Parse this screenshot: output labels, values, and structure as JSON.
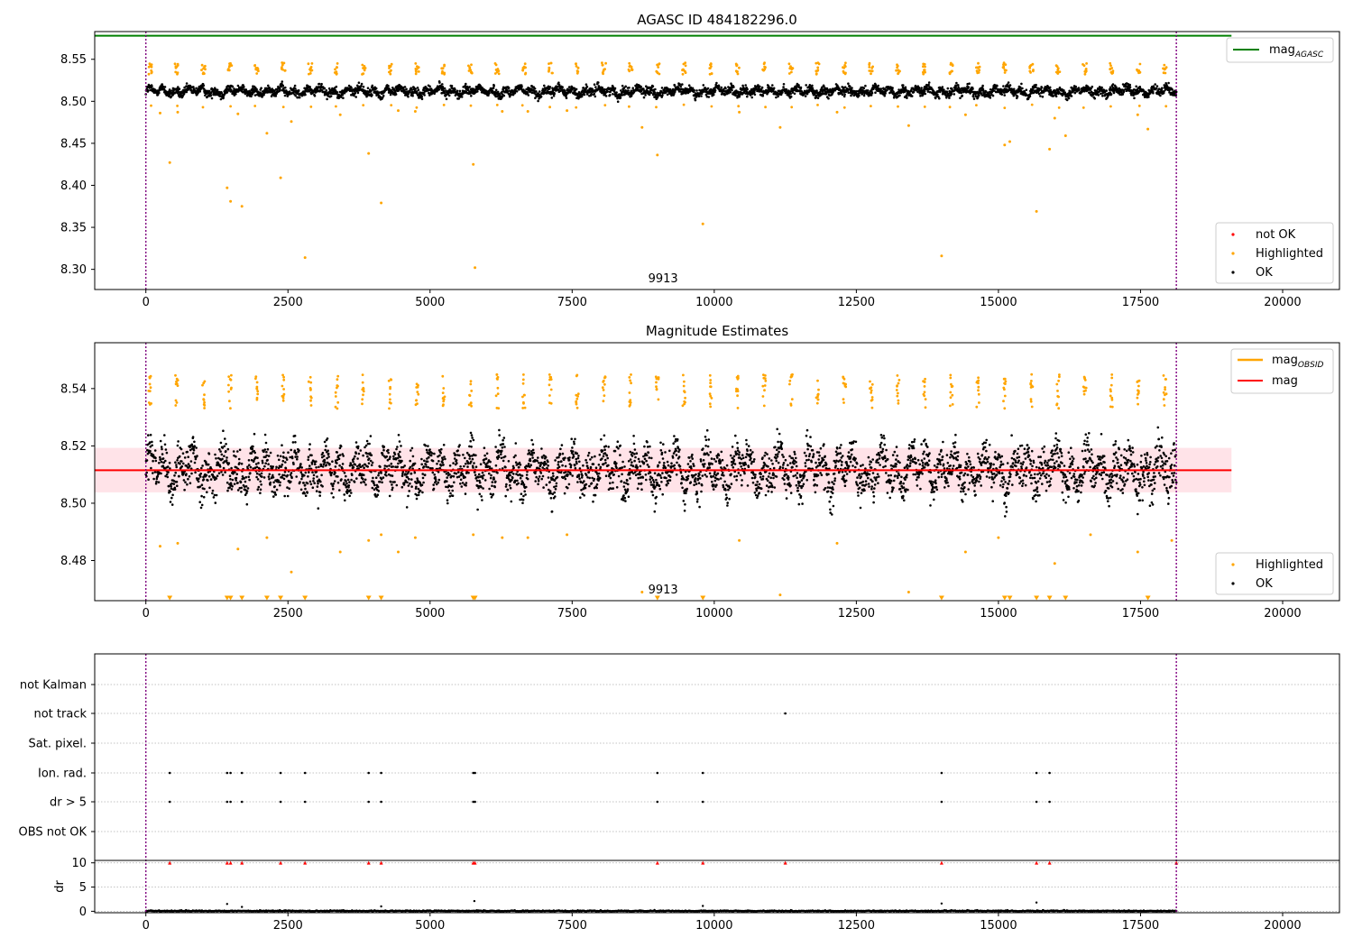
{
  "colors": {
    "ok": "#000000",
    "highlighted": "#ffa500",
    "not_ok": "#ff0000",
    "mag_agasc": "#008000",
    "mag_obsid": "#ffa500",
    "mag_mean": "#ff0000",
    "band": "#ffc0cb",
    "obs_boundary": "#800080"
  },
  "chart_data": [
    {
      "type": "scatter",
      "title": "AGASC ID 484182296.0",
      "xlim": [
        -900,
        21000
      ],
      "ylim": [
        8.276,
        8.583
      ],
      "xticks": [
        0,
        2500,
        5000,
        7500,
        10000,
        12500,
        15000,
        17500,
        20000
      ],
      "yticks": [
        8.3,
        8.35,
        8.4,
        8.45,
        8.5,
        8.55
      ],
      "mag_agasc": 8.578,
      "obs_boundaries": [
        0,
        18130
      ],
      "obsid_label": {
        "text": "9913",
        "x": 9100
      },
      "band_legend": [
        {
          "label": "mag",
          "sub": "AGASC",
          "color_key": "mag_agasc"
        }
      ],
      "scatter_legend": [
        {
          "label": "not OK",
          "color_key": "not_ok"
        },
        {
          "label": "Highlighted",
          "color_key": "highlighted"
        },
        {
          "label": "OK",
          "color_key": "ok"
        }
      ],
      "sampled_series": {
        "start": 0,
        "end": 18130,
        "count": 3600,
        "center": 8.512,
        "spread": 0.007,
        "cluster_period": 470,
        "cluster_value": 8.536
      },
      "highlighted_outliers": [
        [
          420,
          8.427
        ],
        [
          1430,
          8.397
        ],
        [
          1490,
          8.381
        ],
        [
          1690,
          8.375
        ],
        [
          2130,
          8.462
        ],
        [
          2370,
          8.409
        ],
        [
          2800,
          8.314
        ],
        [
          3920,
          8.438
        ],
        [
          4140,
          8.379
        ],
        [
          5760,
          8.425
        ],
        [
          5790,
          8.302
        ],
        [
          8730,
          8.469
        ],
        [
          9000,
          8.436
        ],
        [
          9800,
          8.354
        ],
        [
          11160,
          8.469
        ],
        [
          13420,
          8.471
        ],
        [
          14000,
          8.316
        ],
        [
          15110,
          8.448
        ],
        [
          15200,
          8.452
        ],
        [
          15670,
          8.369
        ],
        [
          15900,
          8.443
        ],
        [
          16180,
          8.459
        ],
        [
          17630,
          8.467
        ],
        [
          250,
          8.486
        ],
        [
          560,
          8.487
        ],
        [
          1620,
          8.485
        ],
        [
          2560,
          8.476
        ],
        [
          3420,
          8.484
        ],
        [
          4440,
          8.489
        ],
        [
          4740,
          8.488
        ],
        [
          6270,
          8.488
        ],
        [
          6720,
          8.488
        ],
        [
          7410,
          8.489
        ],
        [
          10440,
          8.487
        ],
        [
          12160,
          8.487
        ],
        [
          14420,
          8.484
        ],
        [
          15990,
          8.48
        ],
        [
          17450,
          8.484
        ]
      ]
    },
    {
      "type": "scatter",
      "title": "Magnitude Estimates",
      "xlim": [
        -900,
        21000
      ],
      "ylim": [
        8.466,
        8.556
      ],
      "xticks": [
        0,
        2500,
        5000,
        7500,
        10000,
        12500,
        15000,
        17500,
        20000
      ],
      "yticks": [
        8.48,
        8.5,
        8.52,
        8.54
      ],
      "mag_mean": 8.5115,
      "mag_band": [
        8.5038,
        8.5193
      ],
      "mag_line_xrange": [
        -900,
        19100
      ],
      "obs_boundaries": [
        0,
        18130
      ],
      "obsid_label": {
        "text": "9913",
        "x": 9100
      },
      "line_legend": [
        {
          "label": "mag",
          "sub": "OBSID",
          "color_key": "mag_obsid"
        },
        {
          "label": "mag",
          "sub": "",
          "color_key": "mag_mean"
        }
      ],
      "scatter_legend": [
        {
          "label": "Highlighted",
          "color_key": "highlighted"
        },
        {
          "label": "OK",
          "color_key": "ok"
        }
      ],
      "sampled_series": {
        "start": 0,
        "end": 18130,
        "count": 3600,
        "center": 8.5115,
        "spread": 0.0075,
        "cluster_period": 470,
        "cluster_value": 8.537
      },
      "below_range_markers": [
        420,
        1430,
        1490,
        1690,
        2130,
        2370,
        2800,
        3920,
        4140,
        5760,
        5790,
        9000,
        9800,
        14000,
        15110,
        15200,
        15670,
        15900,
        16180,
        17630
      ],
      "highlighted_points": [
        [
          250,
          8.485
        ],
        [
          560,
          8.486
        ],
        [
          1620,
          8.484
        ],
        [
          2130,
          8.488
        ],
        [
          2560,
          8.476
        ],
        [
          3420,
          8.483
        ],
        [
          3920,
          8.487
        ],
        [
          4140,
          8.489
        ],
        [
          4440,
          8.483
        ],
        [
          4740,
          8.488
        ],
        [
          5760,
          8.489
        ],
        [
          6270,
          8.488
        ],
        [
          6720,
          8.488
        ],
        [
          7410,
          8.489
        ],
        [
          8730,
          8.469
        ],
        [
          10440,
          8.487
        ],
        [
          11160,
          8.468
        ],
        [
          12160,
          8.486
        ],
        [
          13420,
          8.469
        ],
        [
          14420,
          8.483
        ],
        [
          15000,
          8.488
        ],
        [
          15990,
          8.479
        ],
        [
          16620,
          8.489
        ],
        [
          17450,
          8.483
        ],
        [
          18050,
          8.487
        ]
      ]
    },
    {
      "type": "scatter",
      "title": "",
      "xlim": [
        -900,
        21000
      ],
      "xticks": [
        0,
        2500,
        5000,
        7500,
        10000,
        12500,
        15000,
        17500,
        20000
      ],
      "flag_rows": [
        "not Kalman",
        "not track",
        "Sat. pixel.",
        "Ion. rad.",
        "dr > 5",
        "OBS not OK"
      ],
      "flag_points": {
        "not Kalman": [],
        "not track": [
          11250
        ],
        "Sat. pixel.": [],
        "Ion. rad.": [
          420,
          1430,
          1490,
          1690,
          2370,
          2800,
          3920,
          4140,
          5760,
          5790,
          9000,
          9800,
          14000,
          15670,
          15900
        ],
        "dr > 5": [
          420,
          1430,
          1490,
          1690,
          2370,
          2800,
          3920,
          4140,
          5760,
          5790,
          9000,
          9800,
          14000,
          15670,
          15900
        ],
        "OBS not OK": []
      },
      "dr_ylabel": "dr",
      "dr_ylim": [
        -0.3,
        10.5
      ],
      "dr_yticks": [
        0,
        5,
        10
      ],
      "dr_clipped_markers": [
        420,
        1430,
        1490,
        1690,
        2370,
        2800,
        3920,
        4140,
        5760,
        5790,
        9000,
        9800,
        11250,
        14000,
        15670,
        15900,
        18130
      ],
      "obs_boundaries": [
        0,
        18130
      ]
    }
  ]
}
